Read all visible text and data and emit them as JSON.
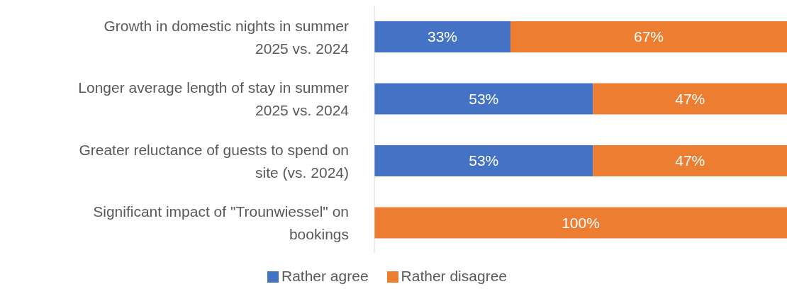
{
  "chart_data": {
    "type": "bar",
    "orientation": "horizontal",
    "stacked": true,
    "legend": "bottom",
    "grid": false,
    "tick_labels": "y",
    "categories": [
      "Growth in domestic nights in summer 2025 vs. 2024",
      "Longer average length of stay in summer 2025 vs. 2024",
      "Greater reluctance of guests to spend on site (vs. 2024)",
      "Significant impact of \"Trounwiessel\" on bookings"
    ],
    "series": [
      {
        "name": "Rather agree",
        "color": "#4472c4",
        "values": [
          33,
          53,
          53,
          null
        ],
        "value_labels": [
          "33%",
          "53%",
          "53%",
          null
        ]
      },
      {
        "name": "Rather disagree",
        "color": "#ed7d31",
        "values": [
          67,
          47,
          47,
          100
        ],
        "value_labels": [
          "67%",
          "47%",
          "47%",
          "100%"
        ]
      }
    ]
  }
}
